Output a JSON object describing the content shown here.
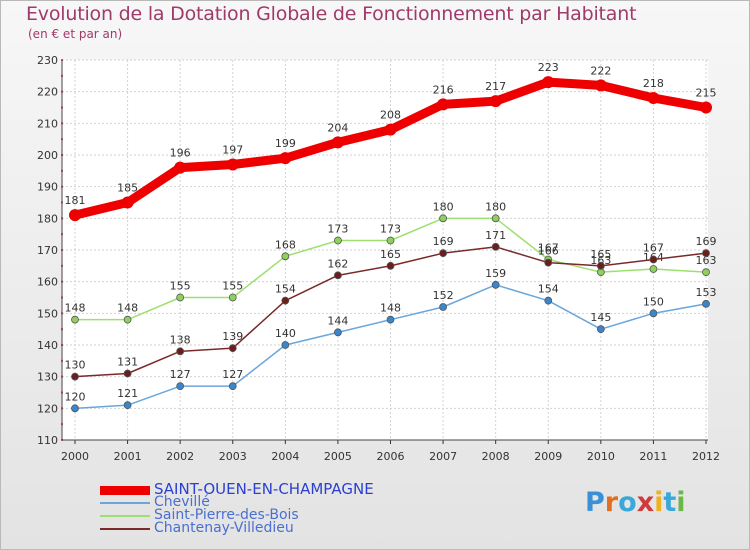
{
  "title": "Evolution de la Dotation Globale de Fonctionnement par Habitant",
  "subtitle": "(en € et par an)",
  "brand": {
    "text": "Proxiti",
    "colors": [
      "#3a8fd6",
      "#e07020",
      "#3aa8d8",
      "#d03a3a",
      "#f0b020",
      "#3aa8d8",
      "#6ab84a"
    ]
  },
  "chart_data": {
    "type": "line",
    "title": "Evolution de la Dotation Globale de Fonctionnement par Habitant",
    "subtitle": "(en € et par an)",
    "xlabel": "",
    "ylabel": "",
    "ylim": [
      110,
      230
    ],
    "yticks": [
      110,
      120,
      130,
      140,
      150,
      160,
      170,
      180,
      190,
      200,
      210,
      220,
      230
    ],
    "grid": true,
    "legend_position": "bottom-left",
    "categories": [
      "2000",
      "2001",
      "2002",
      "2003",
      "2004",
      "2005",
      "2006",
      "2007",
      "2008",
      "2009",
      "2010",
      "2011",
      "2012"
    ],
    "series": [
      {
        "name": "SAINT-OUEN-EN-CHAMPAGNE",
        "color": "#ee0000",
        "marker": "#ee0000",
        "values": [
          181,
          185,
          196,
          197,
          199,
          204,
          208,
          216,
          217,
          223,
          222,
          218,
          215
        ]
      },
      {
        "name": "Chevillé",
        "color": "#6aa6dc",
        "marker": "#3a86cc",
        "values": [
          120,
          121,
          127,
          127,
          140,
          144,
          148,
          152,
          159,
          154,
          145,
          150,
          153
        ]
      },
      {
        "name": "Saint-Pierre-des-Bois",
        "color": "#9ee070",
        "marker": "#8ed060",
        "values": [
          148,
          148,
          155,
          155,
          168,
          173,
          173,
          180,
          180,
          167,
          163,
          164,
          163
        ]
      },
      {
        "name": "Chantenay-Villedieu",
        "color": "#7a2a2a",
        "marker": "#6a1e1e",
        "values": [
          130,
          131,
          138,
          139,
          154,
          162,
          165,
          169,
          171,
          166,
          165,
          167,
          169
        ]
      }
    ]
  }
}
